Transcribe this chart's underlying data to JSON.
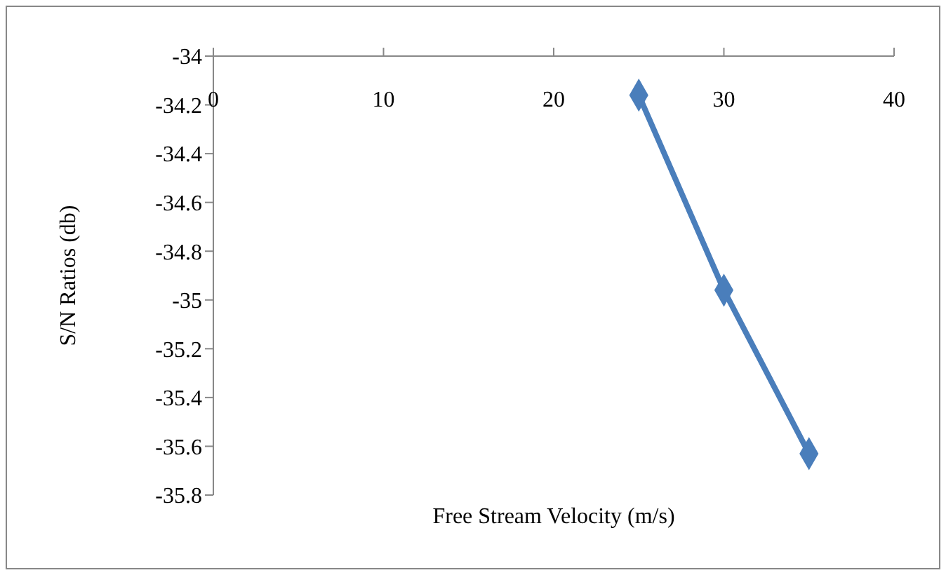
{
  "chart_data": {
    "type": "line",
    "xlabel": "Free Stream Velocity (m/s)",
    "ylabel": "S/N Ratios (db)",
    "x": [
      25,
      30,
      35
    ],
    "series": [
      {
        "color": "#4a7ebb",
        "values": [
          -34.16,
          -34.96,
          -35.63
        ]
      }
    ],
    "xlim": [
      0,
      40
    ],
    "xticks": [
      0,
      10,
      20,
      30,
      40
    ],
    "ylim": [
      -35.8,
      -34
    ],
    "yticks": [
      -35.8,
      -35.6,
      -35.4,
      -35.2,
      -35,
      -34.8,
      -34.6,
      -34.4,
      -34.2,
      -34
    ],
    "marker": "diamond",
    "line_style": "solid"
  }
}
